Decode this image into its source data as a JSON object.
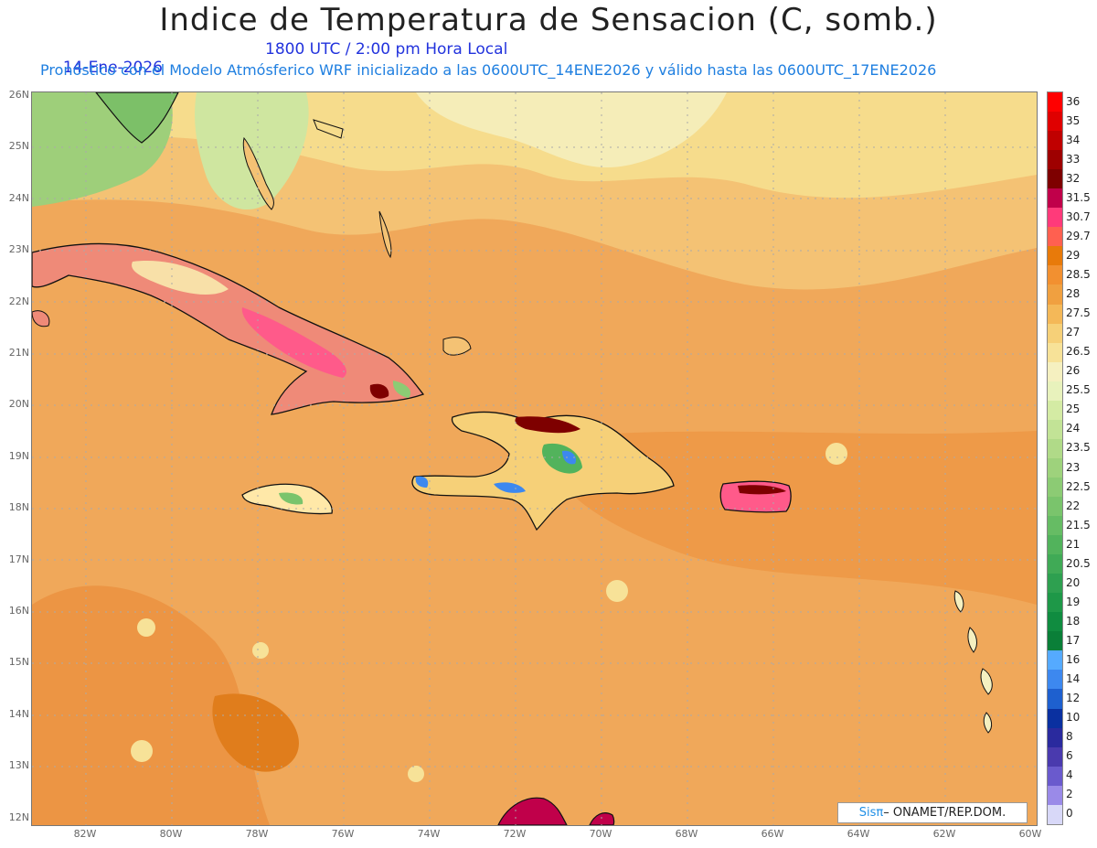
{
  "header": {
    "title": "Indice de Temperatura de Sensacion (C, somb.)",
    "date": "14-Ene-2026",
    "time": "1800 UTC / 2:00 pm Hora Local",
    "subtitle": "Pronóstico con el Modelo Atmósferico WRF inicializado a las 0600UTC_14ENE2026 y válido hasta las  0600UTC_17ENE2026"
  },
  "map": {
    "lat_labels": [
      "26N",
      "25N",
      "24N",
      "23N",
      "22N",
      "21N",
      "20N",
      "19N",
      "18N",
      "17N",
      "16N",
      "15N",
      "14N",
      "13N",
      "12N"
    ],
    "lon_labels": [
      "82W",
      "80W",
      "78W",
      "76W",
      "74W",
      "72W",
      "70W",
      "68W",
      "66W",
      "64W",
      "62W",
      "60W"
    ],
    "extent": {
      "lon_west": -83.3,
      "lon_east": -59.9,
      "lat_south": 11.85,
      "lat_north": 26.05
    },
    "background_color": "#f0a85a"
  },
  "legend": {
    "labels": [
      "36",
      "35",
      "34",
      "33",
      "32",
      "31.5",
      "30.7",
      "29.7",
      "29",
      "28.5",
      "28",
      "27.5",
      "27",
      "26.5",
      "26",
      "25.5",
      "25",
      "24",
      "23.5",
      "23",
      "22.5",
      "22",
      "21.5",
      "21",
      "20.5",
      "20",
      "19",
      "18",
      "17",
      "16",
      "14",
      "12",
      "10",
      "8",
      "6",
      "4",
      "2",
      "0"
    ],
    "colors": [
      "#ff0000",
      "#e00000",
      "#c00000",
      "#9e0000",
      "#7e0000",
      "#c0004a",
      "#ff3a7a",
      "#ff6050",
      "#e87a0a",
      "#f29030",
      "#f0a040",
      "#f4b858",
      "#f6d078",
      "#f7e298",
      "#f5f0c0",
      "#e8f2bc",
      "#d4eba4",
      "#c2e396",
      "#b0da88",
      "#9ed27c",
      "#8ccb74",
      "#7ac46c",
      "#66bc64",
      "#52b35c",
      "#40aa56",
      "#2ea050",
      "#1e9848",
      "#108c40",
      "#0a7f38",
      "#55aaff",
      "#3d88ef",
      "#1e60cf",
      "#0a30a0",
      "#2a2a9e",
      "#4a3aae",
      "#6a5acd",
      "#9a8ae8",
      "#d8d8f8"
    ]
  },
  "credit": {
    "logo_text": "Sisπ",
    "text": " ONAMET/REP.DOM."
  }
}
